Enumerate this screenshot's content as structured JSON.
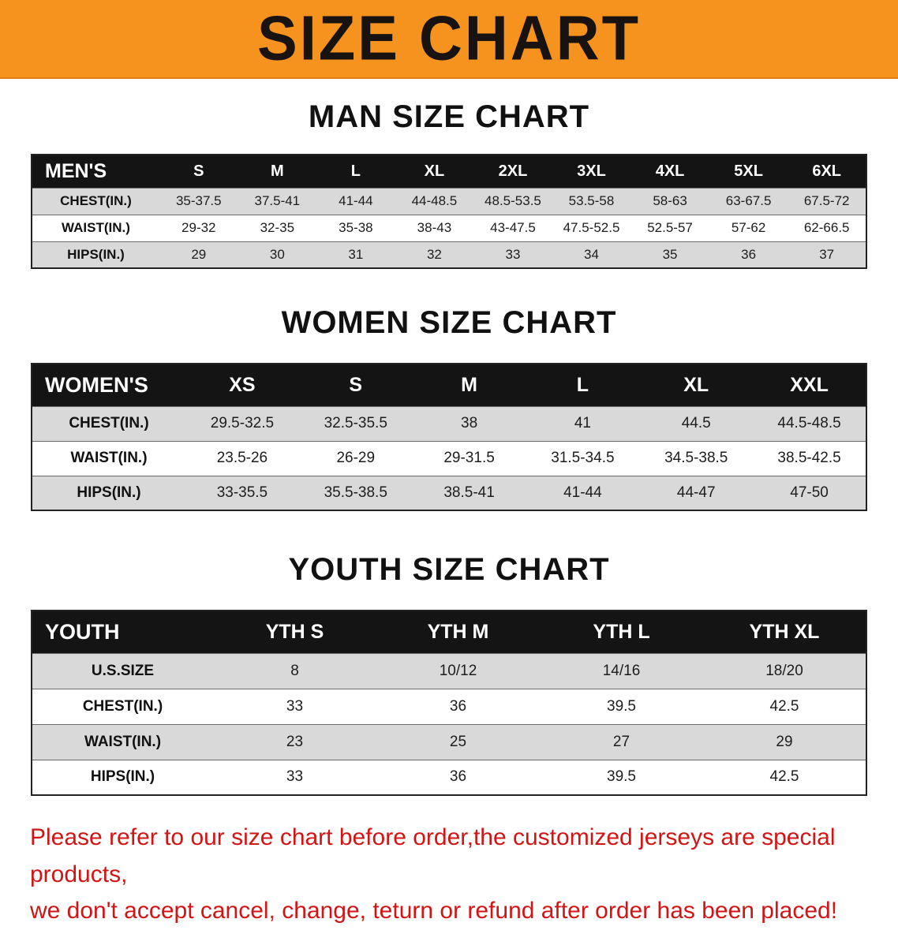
{
  "banner": {
    "title": "SIZE CHART",
    "bg_color": "#f6921e",
    "text_color": "#181210"
  },
  "sections": [
    {
      "heading": "MAN SIZE CHART",
      "table": {
        "corner": "MEN'S",
        "columns": [
          "S",
          "M",
          "L",
          "XL",
          "2XL",
          "3XL",
          "4XL",
          "5XL",
          "6XL"
        ],
        "rows": [
          {
            "label": "CHEST(IN.)",
            "values": [
              "35-37.5",
              "37.5-41",
              "41-44",
              "44-48.5",
              "48.5-53.5",
              "53.5-58",
              "58-63",
              "63-67.5",
              "67.5-72"
            ]
          },
          {
            "label": "WAIST(IN.)",
            "values": [
              "29-32",
              "32-35",
              "35-38",
              "38-43",
              "43-47.5",
              "47.5-52.5",
              "52.5-57",
              "57-62",
              "62-66.5"
            ]
          },
          {
            "label": "HIPS(IN.)",
            "values": [
              "29",
              "30",
              "31",
              "32",
              "33",
              "34",
              "35",
              "36",
              "37"
            ]
          }
        ]
      }
    },
    {
      "heading": "WOMEN SIZE CHART",
      "table": {
        "corner": "WOMEN'S",
        "columns": [
          "XS",
          "S",
          "M",
          "L",
          "XL",
          "XXL"
        ],
        "rows": [
          {
            "label": "CHEST(IN.)",
            "values": [
              "29.5-32.5",
              "32.5-35.5",
              "38",
              "41",
              "44.5",
              "44.5-48.5"
            ]
          },
          {
            "label": "WAIST(IN.)",
            "values": [
              "23.5-26",
              "26-29",
              "29-31.5",
              "31.5-34.5",
              "34.5-38.5",
              "38.5-42.5"
            ]
          },
          {
            "label": "HIPS(IN.)",
            "values": [
              "33-35.5",
              "35.5-38.5",
              "38.5-41",
              "41-44",
              "44-47",
              "47-50"
            ]
          }
        ]
      }
    },
    {
      "heading": "YOUTH SIZE CHART",
      "table": {
        "corner": "YOUTH",
        "columns": [
          "YTH S",
          "YTH M",
          "YTH L",
          "YTH XL"
        ],
        "rows": [
          {
            "label": "U.S.SIZE",
            "values": [
              "8",
              "10/12",
              "14/16",
              "18/20"
            ]
          },
          {
            "label": "CHEST(IN.)",
            "values": [
              "33",
              "36",
              "39.5",
              "42.5"
            ]
          },
          {
            "label": "WAIST(IN.)",
            "values": [
              "23",
              "25",
              "27",
              "29"
            ]
          },
          {
            "label": "HIPS(IN.)",
            "values": [
              "33",
              "36",
              "39.5",
              "42.5"
            ]
          }
        ]
      }
    }
  ],
  "disclaimer": {
    "line1": "Please refer to our size chart before order,the customized jerseys are special products,",
    "line2": "we don't accept cancel, change, teturn or refund after order has been placed!",
    "color": "#d21414"
  }
}
